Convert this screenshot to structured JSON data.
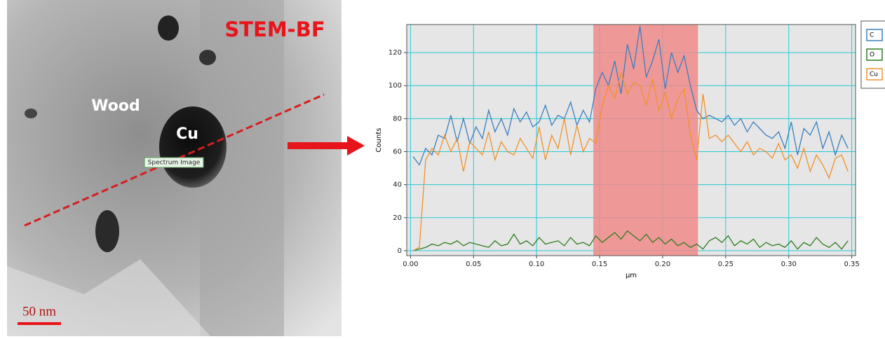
{
  "micrograph": {
    "title": "STEM-BF",
    "labels": [
      "Wood",
      "Cu",
      "Spectrum Image"
    ],
    "scale_bar": "50 nm"
  },
  "chart_data": {
    "type": "line",
    "x_label": "µm",
    "y_label": "Counts",
    "x": [
      0.002,
      0.007,
      0.012,
      0.017,
      0.022,
      0.027,
      0.032,
      0.037,
      0.042,
      0.047,
      0.052,
      0.057,
      0.062,
      0.067,
      0.072,
      0.077,
      0.082,
      0.087,
      0.092,
      0.097,
      0.102,
      0.107,
      0.112,
      0.117,
      0.122,
      0.127,
      0.132,
      0.137,
      0.142,
      0.147,
      0.152,
      0.157,
      0.162,
      0.167,
      0.172,
      0.177,
      0.182,
      0.187,
      0.192,
      0.197,
      0.202,
      0.207,
      0.212,
      0.217,
      0.222,
      0.227,
      0.232,
      0.237,
      0.242,
      0.247,
      0.252,
      0.257,
      0.262,
      0.267,
      0.272,
      0.277,
      0.282,
      0.287,
      0.292,
      0.297,
      0.302,
      0.307,
      0.312,
      0.317,
      0.322,
      0.327,
      0.332,
      0.337,
      0.342,
      0.347
    ],
    "series": [
      {
        "name": "C",
        "color": "#3a7fbf",
        "values": [
          57,
          52,
          62,
          58,
          70,
          68,
          82,
          66,
          80,
          65,
          75,
          68,
          85,
          72,
          80,
          70,
          86,
          78,
          84,
          75,
          78,
          88,
          76,
          82,
          80,
          90,
          76,
          85,
          78,
          98,
          108,
          100,
          115,
          95,
          125,
          110,
          136,
          105,
          115,
          128,
          98,
          120,
          108,
          118,
          100,
          85,
          80,
          82,
          80,
          78,
          82,
          76,
          80,
          72,
          78,
          74,
          70,
          68,
          72,
          62,
          78,
          58,
          74,
          70,
          78,
          62,
          72,
          58,
          70,
          62
        ]
      },
      {
        "name": "O",
        "color": "#2e7d1f",
        "values": [
          0,
          1,
          2,
          4,
          3,
          5,
          4,
          6,
          3,
          5,
          4,
          3,
          2,
          6,
          3,
          4,
          10,
          4,
          6,
          3,
          8,
          4,
          5,
          6,
          3,
          8,
          4,
          5,
          3,
          9,
          5,
          8,
          11,
          7,
          12,
          9,
          6,
          10,
          5,
          8,
          4,
          7,
          3,
          5,
          2,
          4,
          1,
          6,
          8,
          5,
          9,
          3,
          6,
          4,
          7,
          2,
          5,
          3,
          4,
          2,
          6,
          1,
          5,
          3,
          8,
          4,
          2,
          5,
          1,
          6
        ]
      },
      {
        "name": "Cu",
        "color": "#f0922a",
        "values": [
          0,
          2,
          55,
          62,
          58,
          70,
          60,
          68,
          48,
          66,
          62,
          58,
          72,
          55,
          66,
          60,
          58,
          68,
          62,
          56,
          75,
          55,
          70,
          62,
          80,
          58,
          76,
          60,
          68,
          65,
          88,
          100,
          92,
          108,
          95,
          102,
          100,
          88,
          104,
          85,
          96,
          80,
          92,
          98,
          70,
          55,
          95,
          68,
          70,
          66,
          70,
          65,
          60,
          66,
          58,
          62,
          60,
          56,
          65,
          55,
          58,
          50,
          62,
          48,
          58,
          52,
          44,
          56,
          58,
          48
        ]
      }
    ],
    "xlim": [
      -0.003,
      0.353
    ],
    "xticks": [
      {
        "value": 0,
        "label": "0.00"
      },
      0.05,
      {
        "value": 0.1,
        "label": "0.10"
      },
      0.15,
      {
        "value": 0.2,
        "label": "0.20"
      },
      0.25,
      {
        "value": 0.3,
        "label": "0.30"
      },
      0.35
    ],
    "ylim": [
      -3,
      137
    ],
    "yticks": [
      0,
      20,
      40,
      60,
      80,
      100,
      120
    ],
    "grid": true,
    "highlight": {
      "x": [
        0.145,
        0.228
      ],
      "color": "#f08a8a"
    },
    "legend": "right"
  }
}
